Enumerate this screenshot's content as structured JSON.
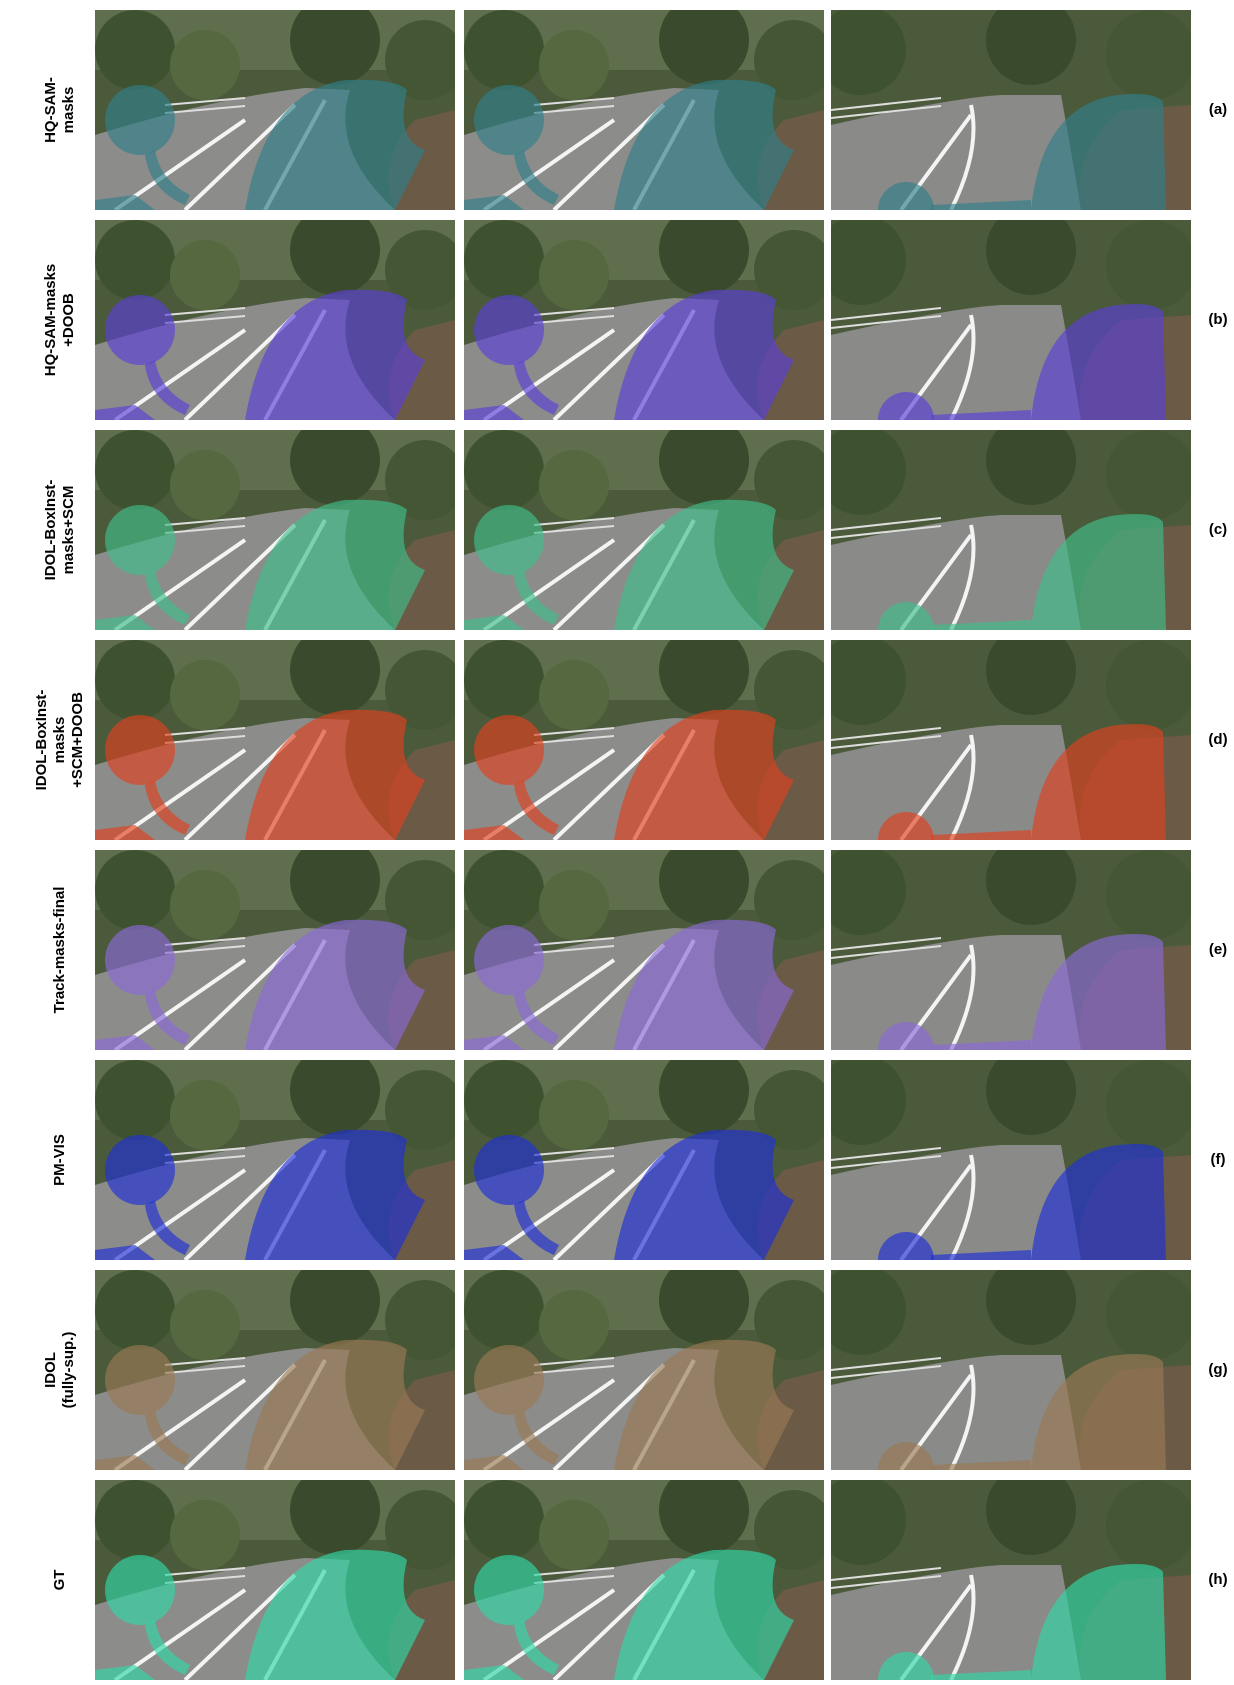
{
  "rows": [
    {
      "label": [
        "HQ-SAM-",
        "masks"
      ],
      "tag": "(a)",
      "mask_color": "#2f7f8a"
    },
    {
      "label": [
        "HQ-SAM-masks",
        "+DOOB"
      ],
      "tag": "(b)",
      "mask_color": "#5a3fd8"
    },
    {
      "label": [
        "IDOL-BoxInst-",
        "masks+SCM"
      ],
      "tag": "(c)",
      "mask_color": "#3fbf8a"
    },
    {
      "label": [
        "IDOL-BoxInst-",
        "masks",
        "+SCM+DOOB"
      ],
      "tag": "(d)",
      "mask_color": "#e0401f"
    },
    {
      "label": [
        "Track-masks-final"
      ],
      "tag": "(e)",
      "mask_color": "#8a6ad8"
    },
    {
      "label": [
        "PM-VIS"
      ],
      "tag": "(f)",
      "mask_color": "#1f2fd8"
    },
    {
      "label": [
        "IDOL",
        "(fully-sup.)"
      ],
      "tag": "(g)",
      "mask_color": "#9a7a55"
    },
    {
      "label": [
        "GT"
      ],
      "tag": "(h)",
      "mask_color": "#2fd8a8"
    }
  ]
}
